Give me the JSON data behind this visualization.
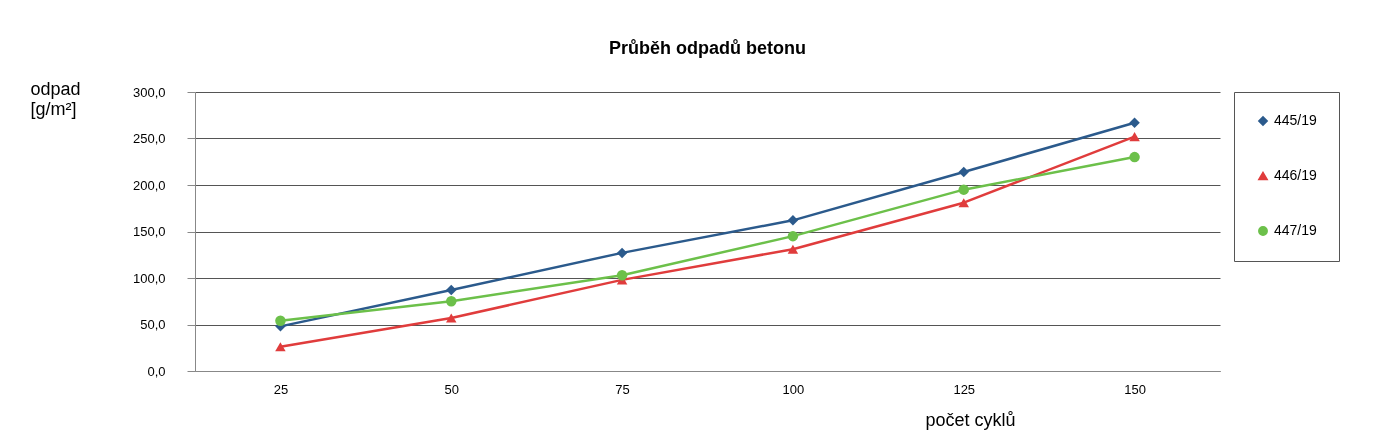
{
  "chart_data": {
    "type": "line",
    "title": "Průběh odpadů betonu",
    "xlabel": "počet cyklů",
    "ylabel": "odpad [g/m²]",
    "categories": [
      "25",
      "50",
      "75",
      "100",
      "125",
      "150"
    ],
    "series": [
      {
        "name": "445/19",
        "color": "#2b5a8c",
        "marker": "diamond",
        "values": [
          48,
          87,
          127,
          162,
          214,
          267
        ]
      },
      {
        "name": "446/19",
        "color": "#e03c3c",
        "marker": "triangle",
        "values": [
          26,
          57,
          98,
          131,
          181,
          252
        ]
      },
      {
        "name": "447/19",
        "color": "#6cc04a",
        "marker": "circle",
        "values": [
          54,
          75,
          103,
          145,
          195,
          230
        ]
      }
    ],
    "ylim": [
      0,
      300
    ],
    "yticks": [
      {
        "value": 0,
        "label": "0,0"
      },
      {
        "value": 50,
        "label": "50,0"
      },
      {
        "value": 100,
        "label": "100,0"
      },
      {
        "value": 150,
        "label": "150,0"
      },
      {
        "value": 200,
        "label": "200,0"
      },
      {
        "value": 250,
        "label": "250,0"
      },
      {
        "value": 300,
        "label": "300,0"
      }
    ],
    "grid": "y",
    "legend": "right"
  }
}
